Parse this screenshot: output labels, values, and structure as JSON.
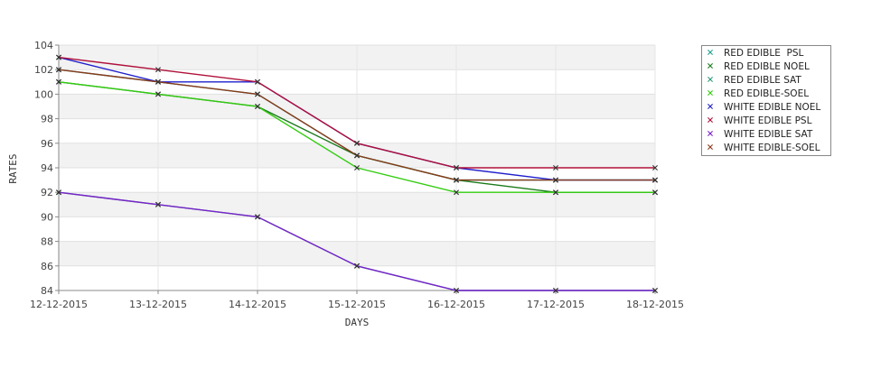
{
  "chart_data": {
    "type": "line",
    "title": "",
    "xlabel": "DAYS",
    "ylabel": "RATES",
    "categories": [
      "12-12-2015",
      "13-12-2015",
      "14-12-2015",
      "15-12-2015",
      "16-12-2015",
      "17-12-2015",
      "18-12-2015"
    ],
    "ylim": [
      84,
      104
    ],
    "yticks": [
      84,
      86,
      88,
      90,
      92,
      94,
      96,
      98,
      100,
      102,
      104
    ],
    "grid": true,
    "legend_position": "right",
    "series": [
      {
        "name": "RED EDIBLE  PSL",
        "color": "#1f9e8a",
        "values": [
          102,
          101,
          100,
          95,
          93,
          93,
          93
        ]
      },
      {
        "name": "RED EDIBLE NOEL",
        "color": "#1a7a1a",
        "values": [
          101,
          100,
          99,
          95,
          93,
          92,
          92
        ]
      },
      {
        "name": "RED EDIBLE SAT",
        "color": "#2a9a7a",
        "values": [
          92,
          91,
          90,
          86,
          84,
          84,
          84
        ]
      },
      {
        "name": "RED EDIBLE-SOEL",
        "color": "#33cc11",
        "values": [
          101,
          100,
          99,
          94,
          92,
          92,
          92
        ]
      },
      {
        "name": "WHITE EDIBLE NOEL",
        "color": "#1f1fcc",
        "values": [
          103,
          101,
          101,
          96,
          94,
          93,
          93
        ]
      },
      {
        "name": "WHITE EDIBLE PSL",
        "color": "#b0103a",
        "values": [
          103,
          102,
          101,
          96,
          94,
          94,
          94
        ]
      },
      {
        "name": "WHITE EDIBLE SAT",
        "color": "#7a22cc",
        "values": [
          92,
          91,
          90,
          86,
          84,
          84,
          84
        ]
      },
      {
        "name": "WHITE EDIBLE-SOEL",
        "color": "#8b3a1a",
        "values": [
          102,
          101,
          100,
          95,
          93,
          93,
          93
        ]
      }
    ]
  }
}
